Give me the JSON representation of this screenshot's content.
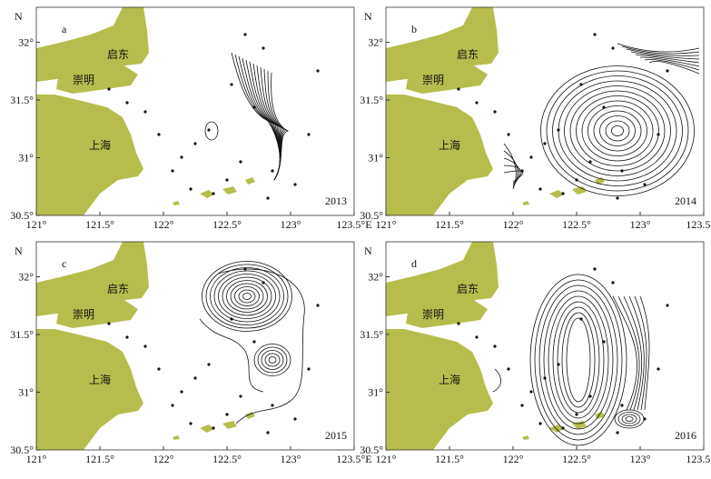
{
  "y_axis_label": "N",
  "x_ticks": [
    "121°",
    "121.5°",
    "122°",
    "122.5°",
    "123°",
    "123.5°E"
  ],
  "y_ticks": [
    "30.5°",
    "31°",
    "31.5°",
    "32°"
  ],
  "places": [
    "启东",
    "崇明",
    "上海"
  ],
  "panels": [
    {
      "label": "a",
      "year": "2013"
    },
    {
      "label": "b",
      "year": "2014"
    },
    {
      "label": "c",
      "year": "2015"
    },
    {
      "label": "d",
      "year": "2016"
    }
  ]
}
